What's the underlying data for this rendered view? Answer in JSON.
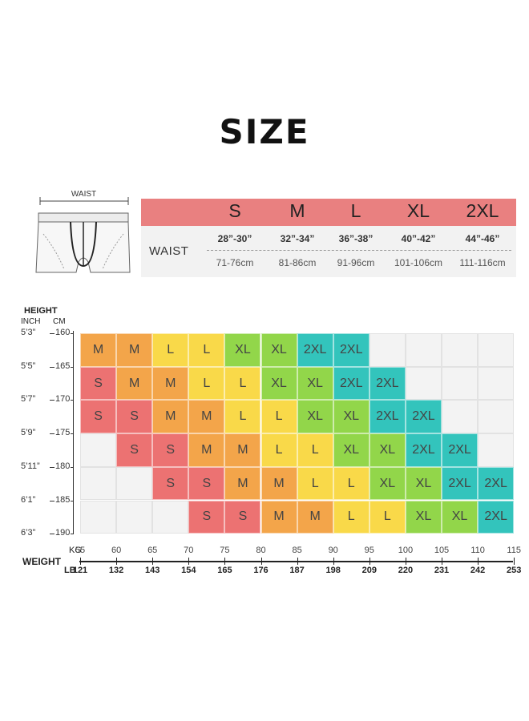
{
  "title": "SIZE",
  "illustration": {
    "label": "WAIST"
  },
  "size_table": {
    "sizes": [
      "S",
      "M",
      "L",
      "XL",
      "2XL"
    ],
    "row_label": "WAIST",
    "inches": [
      "28”-30”",
      "32”-34”",
      "36”-38”",
      "40”-42”",
      "44”-46”"
    ],
    "cm": [
      "71-76cm",
      "81-86cm",
      "91-96cm",
      "101-106cm",
      "111-116cm"
    ]
  },
  "chart_data": {
    "type": "heatmap",
    "ylabel": "HEIGHT",
    "y_units": [
      "INCH",
      "CM"
    ],
    "y_inch": [
      "5’3”",
      "5’5”",
      "5’7”",
      "5’9”",
      "5’11”",
      "6’1”",
      "6’3”"
    ],
    "y_cm": [
      "160",
      "165",
      "170",
      "175",
      "180",
      "185",
      "190"
    ],
    "xlabel": "WEIGHT",
    "x_units": [
      "KG",
      "LB"
    ],
    "x_kg": [
      "55",
      "60",
      "65",
      "70",
      "75",
      "80",
      "85",
      "90",
      "95",
      "100",
      "105",
      "110",
      "115"
    ],
    "x_lb": [
      "121",
      "132",
      "143",
      "154",
      "165",
      "176",
      "187",
      "198",
      "209",
      "220",
      "231",
      "242",
      "253"
    ],
    "grid": [
      [
        "M",
        "M",
        "L",
        "L",
        "XL",
        "XL",
        "2XL",
        "2XL",
        "",
        "",
        "",
        ""
      ],
      [
        "S",
        "M",
        "M",
        "L",
        "L",
        "XL",
        "XL",
        "2XL",
        "2XL",
        "",
        "",
        ""
      ],
      [
        "S",
        "S",
        "M",
        "M",
        "L",
        "L",
        "XL",
        "XL",
        "2XL",
        "2XL",
        "",
        ""
      ],
      [
        "",
        "S",
        "S",
        "M",
        "M",
        "L",
        "L",
        "XL",
        "XL",
        "2XL",
        "2XL",
        ""
      ],
      [
        "",
        "",
        "S",
        "S",
        "M",
        "M",
        "L",
        "L",
        "XL",
        "XL",
        "2XL",
        "2XL"
      ],
      [
        "",
        "",
        "",
        "S",
        "S",
        "M",
        "M",
        "L",
        "L",
        "XL",
        "XL",
        "2XL"
      ]
    ]
  },
  "colors": {
    "S": "#ec7272",
    "M": "#f3a54a",
    "L": "#f9d949",
    "XL": "#92d64a",
    "2XL": "#33c4bc",
    "blank": "#f3f3f3",
    "header": "#e98080"
  }
}
